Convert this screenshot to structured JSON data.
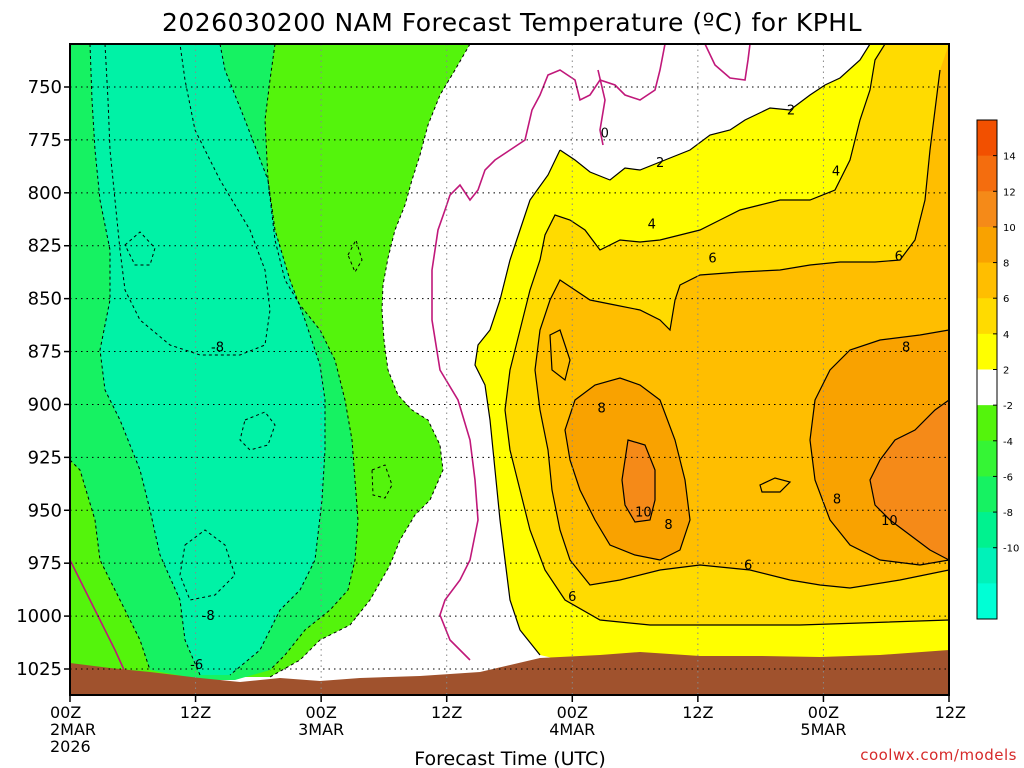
{
  "title": "2026030200 NAM Forecast Temperature (ºC) for KPHL",
  "credit": "coolwx.com/models",
  "colors": {
    "teal": "#00f2a6",
    "lightgreen": "#16f262",
    "green": "#54f40c",
    "white": "#ffffff",
    "yellow": "#ffff00",
    "gold": "#ffdb00",
    "orange1": "#ffbe00",
    "orange2": "#f9a200",
    "orange3": "#f58a18",
    "terrain": "#a0522d",
    "freezing_line": "#c0187a"
  },
  "chart_data": {
    "type": "heatmap",
    "title": "2026030200 NAM Forecast Temperature (ºC) for KPHL",
    "xlabel": "Forecast Time (UTC)",
    "ylabel": "",
    "x_ticks": [
      {
        "h": 0,
        "lines": [
          "00Z",
          "2MAR",
          "2026"
        ]
      },
      {
        "h": 12,
        "lines": [
          "12Z"
        ]
      },
      {
        "h": 24,
        "lines": [
          "00Z",
          "3MAR"
        ]
      },
      {
        "h": 36,
        "lines": [
          "12Z"
        ]
      },
      {
        "h": 48,
        "lines": [
          "00Z",
          "4MAR"
        ]
      },
      {
        "h": 60,
        "lines": [
          "12Z"
        ]
      },
      {
        "h": 72,
        "lines": [
          "00Z",
          "5MAR"
        ]
      },
      {
        "h": 84,
        "lines": [
          "12Z"
        ]
      }
    ],
    "xlim": [
      0,
      84
    ],
    "y_ticks": [
      750,
      775,
      800,
      825,
      850,
      875,
      900,
      925,
      950,
      975,
      1000,
      1025
    ],
    "ylim": [
      733,
      1037
    ],
    "colorbar": {
      "levels": [
        -12,
        -10,
        -8,
        -6,
        -4,
        -2,
        2,
        4,
        6,
        8,
        10,
        12,
        14,
        16
      ],
      "colors": [
        "#00ffd5",
        "#00f2b9",
        "#00f28f",
        "#16f262",
        "#35f535",
        "#54f40c",
        "#ffffff",
        "#ffff00",
        "#ffdb00",
        "#ffbe00",
        "#f9a200",
        "#f58a18",
        "#f46d0e",
        "#f25000"
      ],
      "tick_labels": [
        "-10",
        "-8",
        "-6",
        "-4",
        "-2",
        "2",
        "4",
        "6",
        "8",
        "10",
        "12",
        "14"
      ]
    },
    "contour_labels": [
      {
        "h": 51.1,
        "p": 772,
        "text": "0"
      },
      {
        "h": 56.4,
        "p": 786,
        "text": "2"
      },
      {
        "h": 68.9,
        "p": 761,
        "text": "2"
      },
      {
        "h": 55.6,
        "p": 815,
        "text": "4"
      },
      {
        "h": 73.2,
        "p": 790,
        "text": "4"
      },
      {
        "h": 61.4,
        "p": 831,
        "text": "6"
      },
      {
        "h": 79.2,
        "p": 830,
        "text": "6"
      },
      {
        "h": 50.8,
        "p": 902,
        "text": "8"
      },
      {
        "h": 79.9,
        "p": 873,
        "text": "8"
      },
      {
        "h": 73.3,
        "p": 945,
        "text": "8"
      },
      {
        "h": 57.2,
        "p": 957,
        "text": "8"
      },
      {
        "h": 54.8,
        "p": 951,
        "text": "10"
      },
      {
        "h": 78.3,
        "p": 955,
        "text": "10"
      },
      {
        "h": 64.8,
        "p": 976,
        "text": "6"
      },
      {
        "h": 48.0,
        "p": 991,
        "text": "6"
      },
      {
        "h": 14.1,
        "p": 873,
        "text": "-8"
      },
      {
        "h": 13.2,
        "p": 1000,
        "text": "-8"
      },
      {
        "h": 12.1,
        "p": 1023,
        "text": "-6"
      }
    ]
  }
}
